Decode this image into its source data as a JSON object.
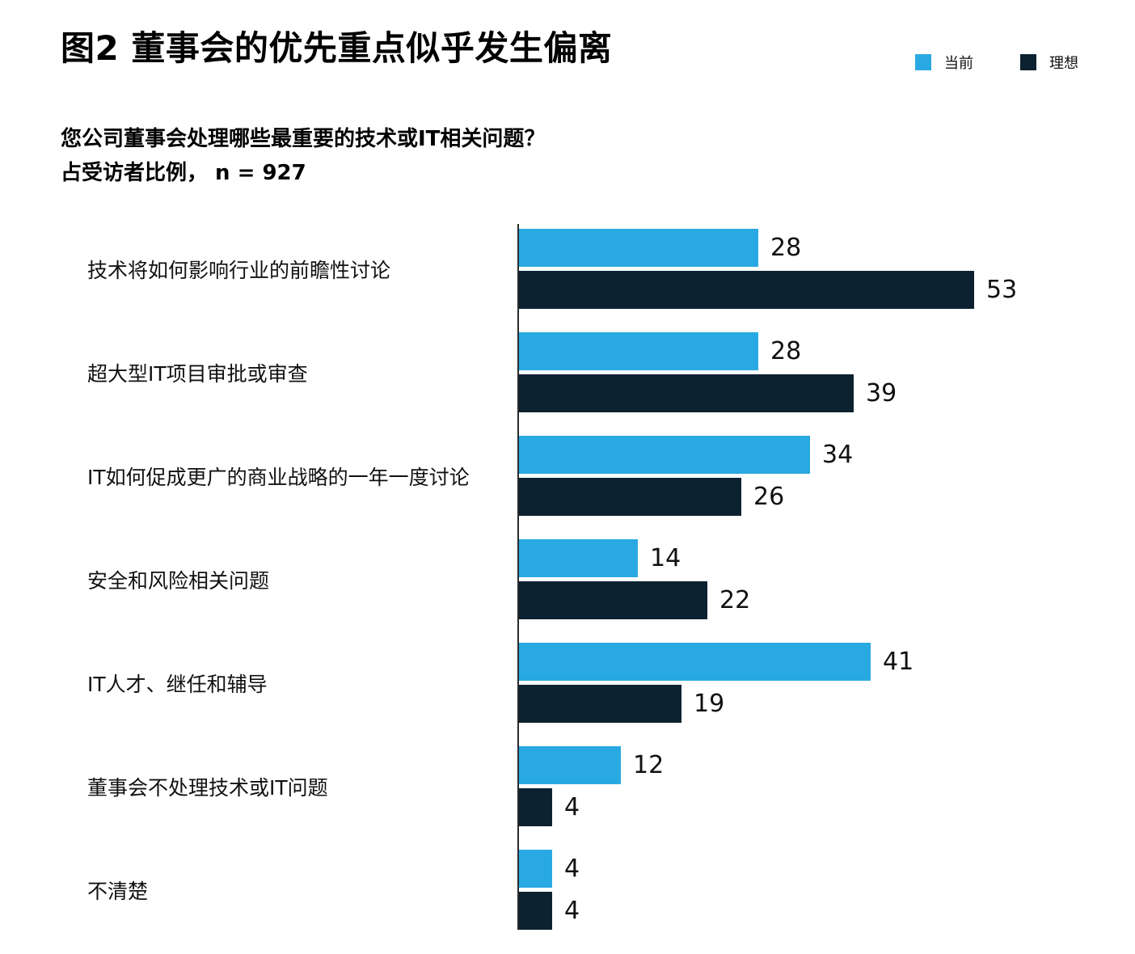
{
  "figure": {
    "title": "图2  董事会的优先重点似乎发生偏离",
    "subtitle_line1": "您公司董事会处理哪些最重要的技术或IT相关问题？",
    "subtitle_line2": "占受访者比例，  n = 927"
  },
  "legend": [
    {
      "label": "当前",
      "color": "#29a9e1"
    },
    {
      "label": "理想",
      "color": "#0c2230"
    }
  ],
  "chart_data": {
    "type": "bar",
    "orientation": "horizontal",
    "title": "图2 董事会的优先重点似乎发生偏离",
    "question": "您公司董事会处理哪些最重要的技术或IT相关问题？",
    "unit_note": "占受访者比例， n = 927",
    "n": 927,
    "xlim": [
      0,
      55
    ],
    "grid": false,
    "legend_position": "top-right",
    "categories": [
      "技术将如何影响行业的前瞻性讨论",
      "超大型IT项目审批或审查",
      "IT如何促成更广的商业战略的一年一度讨论",
      "安全和风险相关问题",
      "IT人才、继任和辅导",
      "董事会不处理技术或IT问题",
      "不清楚"
    ],
    "series": [
      {
        "name": "当前",
        "color": "#29a9e1",
        "values": [
          28,
          28,
          34,
          14,
          41,
          12,
          4
        ]
      },
      {
        "name": "理想",
        "color": "#0c2230",
        "values": [
          53,
          39,
          26,
          22,
          19,
          4,
          4
        ]
      }
    ]
  }
}
